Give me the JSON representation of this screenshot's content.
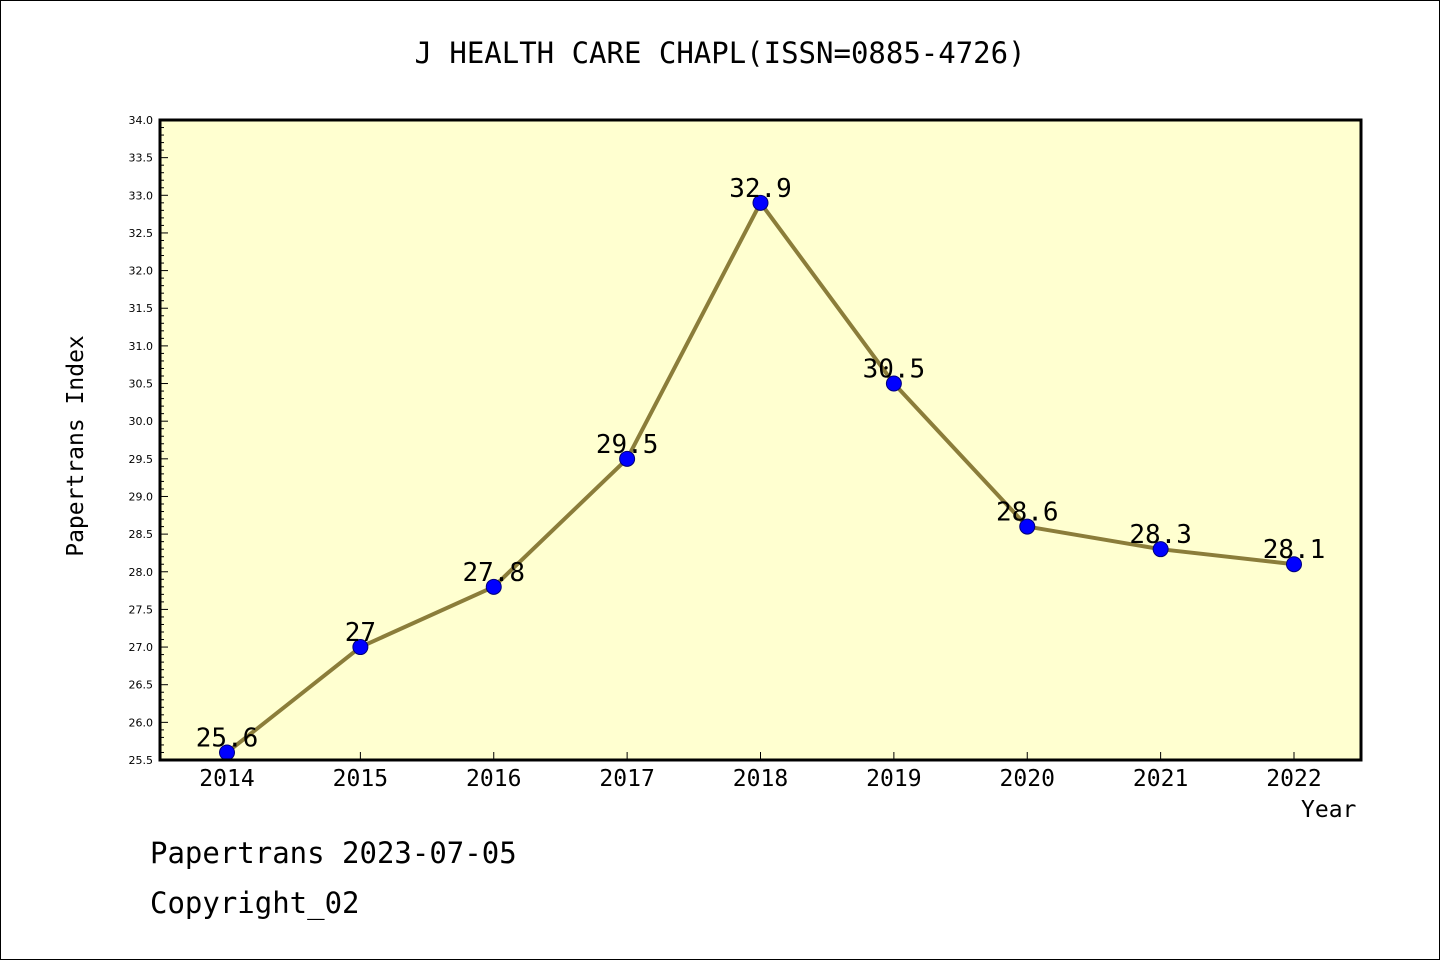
{
  "chart_data": {
    "type": "line",
    "title": "J HEALTH CARE CHAPL(ISSN=0885-4726)",
    "xlabel": "Year",
    "ylabel": "Papertrans Index",
    "categories": [
      "2014",
      "2015",
      "2016",
      "2017",
      "2018",
      "2019",
      "2020",
      "2021",
      "2022"
    ],
    "series": [
      {
        "values": [
          25.6,
          27,
          27.8,
          29.5,
          32.9,
          30.5,
          28.6,
          28.3,
          28.1
        ],
        "labels": [
          "25.6",
          "27",
          "27.8",
          "29.5",
          "32.9",
          "30.5",
          "28.6",
          "28.3",
          "28.1"
        ]
      }
    ],
    "ylim": [
      25.5,
      34.0
    ],
    "yticks": [
      "25.5",
      "26.0",
      "26.5",
      "27.0",
      "27.5",
      "28.0",
      "28.5",
      "29.0",
      "29.5",
      "30.0",
      "30.5",
      "31.0",
      "31.5",
      "32.0",
      "32.5",
      "33.0",
      "33.5",
      "34.0"
    ],
    "grid": false,
    "colors": {
      "plot_bg": "#ffffd0",
      "line": "#8b7d3a",
      "marker": "#0000ff"
    }
  },
  "footer": {
    "date": "Papertrans 2023-07-05",
    "copyright": "Copyright_02"
  }
}
